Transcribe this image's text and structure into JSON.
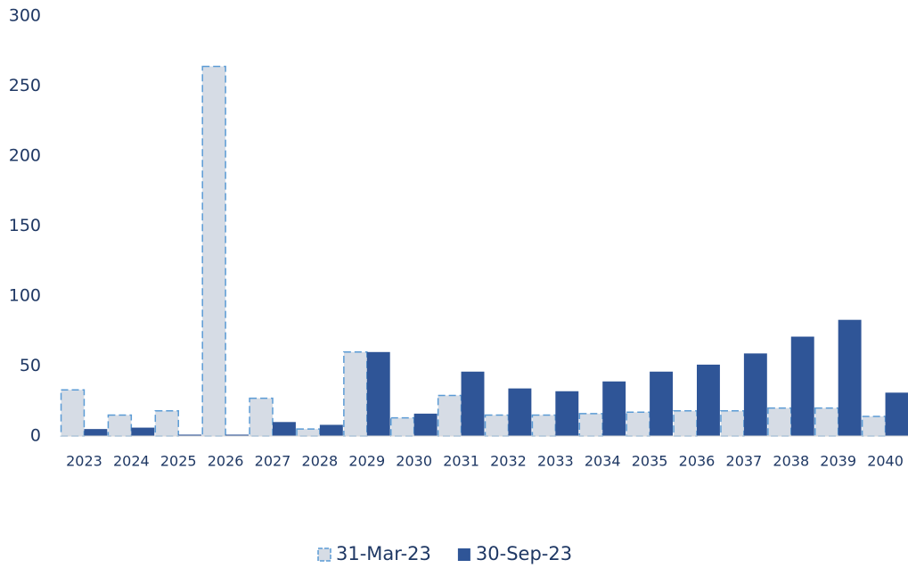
{
  "chart_data": {
    "type": "bar",
    "categories": [
      "2023",
      "2024",
      "2025",
      "2026",
      "2027",
      "2028",
      "2029",
      "2030",
      "2031",
      "2032",
      "2033",
      "2034",
      "2035",
      "2036",
      "2037",
      "2038",
      "2039",
      "2040"
    ],
    "series": [
      {
        "name": "31-Mar-23",
        "color": "#d6dce5",
        "edgecolor": "#5b9bd5",
        "edgestyle": "dashed",
        "values": [
          33,
          15,
          18,
          264,
          27,
          5,
          60,
          13,
          29,
          15,
          15,
          16,
          17,
          18,
          18,
          20,
          20,
          14
        ]
      },
      {
        "name": "30-Sep-23",
        "color": "#2f5597",
        "values": [
          5,
          6,
          1,
          1,
          10,
          8,
          60,
          16,
          46,
          34,
          32,
          39,
          46,
          51,
          59,
          71,
          83,
          31
        ]
      }
    ],
    "ylim": [
      0,
      300
    ],
    "yticks": [
      0,
      50,
      100,
      150,
      200,
      250,
      300
    ],
    "grid": false,
    "legend": "bottom"
  }
}
